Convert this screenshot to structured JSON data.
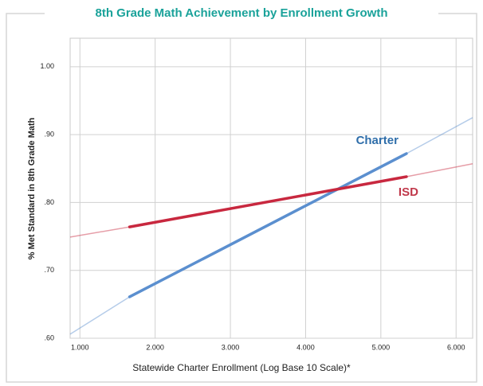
{
  "chart_data": {
    "type": "line",
    "title": "8th Grade Math Achievement by Enrollment Growth",
    "x_label": "Statewide Charter Enrollment (Log Base 10 Scale)*",
    "y_label": "% Met Standard in 8th Grade Math",
    "xlim": [
      0.87,
      6.22
    ],
    "ylim": [
      0.6,
      1.042
    ],
    "xticks": [
      {
        "value": 1,
        "label": "1.000"
      },
      {
        "value": 2,
        "label": "2.000"
      },
      {
        "value": 3,
        "label": "3.000"
      },
      {
        "value": 4,
        "label": "4.000"
      },
      {
        "value": 5,
        "label": "5.000"
      },
      {
        "value": 6,
        "label": "6.000"
      }
    ],
    "yticks": [
      {
        "value": 0.6,
        "label": ".60"
      },
      {
        "value": 0.7,
        "label": ".70"
      },
      {
        "value": 0.8,
        "label": ".80"
      },
      {
        "value": 0.9,
        "label": ".90"
      },
      {
        "value": 1.0,
        "label": "1.00"
      }
    ],
    "grid": true,
    "series": [
      {
        "name": "Charter",
        "color": "#5b8fcf",
        "label_color": "#2f6eaa",
        "x": [
          0.87,
          1.66,
          5.34,
          6.22
        ],
        "values": [
          0.606,
          0.661,
          0.872,
          0.925
        ]
      },
      {
        "name": "ISD",
        "color": "#c8283f",
        "label_color": "#c0394b",
        "x": [
          0.87,
          1.66,
          5.34,
          6.22
        ],
        "values": [
          0.749,
          0.764,
          0.838,
          0.857
        ]
      }
    ]
  }
}
